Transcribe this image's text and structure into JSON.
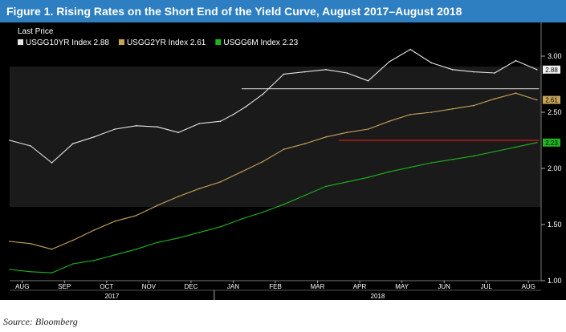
{
  "title": "Figure 1. Rising Rates on the Short End of the Yield Curve, August 2017–August 2018",
  "source": "Source: Bloomberg",
  "colors": {
    "title_bg": "#2d7fc1",
    "panel_bg": "#000000",
    "ten_year": "#e6e6e6",
    "two_year": "#c8a45a",
    "six_month": "#1fb51f",
    "ref_ten": "#bbbbbb",
    "ref_two": "#d01a1a"
  },
  "chart_data": {
    "type": "line",
    "legend_title": "Last Price",
    "legend_position": "top-left",
    "x_ticks": [
      "AUG",
      "SEP",
      "OCT",
      "NOV",
      "DEC",
      "JAN",
      "FEB",
      "MAR",
      "APR",
      "MAY",
      "JUN",
      "JUL",
      "AUG"
    ],
    "year_labels": [
      "2017",
      "2018"
    ],
    "y_ticks": [
      "1.00",
      "1.50",
      "2.00",
      "2.50",
      "3.00"
    ],
    "ylim": [
      1.0,
      3.3
    ],
    "x_range_months": [
      0,
      12.6
    ],
    "series": [
      {
        "name": "USGG10YR Index 2.88",
        "last_label": "2.88",
        "color_key": "ten_year",
        "x": [
          0,
          0.5,
          1.0,
          1.5,
          2.0,
          2.5,
          3.0,
          3.5,
          4.0,
          4.5,
          5.0,
          5.3,
          5.6,
          6.0,
          6.5,
          7.0,
          7.5,
          8.0,
          8.5,
          9.0,
          9.5,
          10.0,
          10.5,
          11.0,
          11.5,
          12.0,
          12.5
        ],
        "values": [
          2.25,
          2.2,
          2.05,
          2.22,
          2.28,
          2.35,
          2.38,
          2.37,
          2.32,
          2.4,
          2.42,
          2.48,
          2.55,
          2.66,
          2.84,
          2.86,
          2.88,
          2.85,
          2.78,
          2.95,
          3.06,
          2.94,
          2.88,
          2.86,
          2.85,
          2.96,
          2.88
        ]
      },
      {
        "name": "USGG2YR Index 2.61",
        "last_label": "2.61",
        "color_key": "two_year",
        "x": [
          0,
          0.5,
          1.0,
          1.5,
          2.0,
          2.5,
          3.0,
          3.5,
          4.0,
          4.5,
          5.0,
          5.5,
          6.0,
          6.5,
          7.0,
          7.5,
          8.0,
          8.5,
          9.0,
          9.5,
          10.0,
          10.5,
          11.0,
          11.5,
          12.0,
          12.5
        ],
        "values": [
          1.35,
          1.33,
          1.28,
          1.36,
          1.45,
          1.53,
          1.58,
          1.67,
          1.75,
          1.82,
          1.88,
          1.97,
          2.06,
          2.17,
          2.22,
          2.28,
          2.32,
          2.35,
          2.42,
          2.48,
          2.5,
          2.53,
          2.56,
          2.62,
          2.67,
          2.61
        ]
      },
      {
        "name": "USGG6M Index 2.23",
        "last_label": "2.23",
        "color_key": "six_month",
        "x": [
          0,
          0.5,
          1.0,
          1.5,
          2.0,
          2.5,
          3.0,
          3.5,
          4.0,
          4.5,
          5.0,
          5.5,
          6.0,
          6.5,
          7.0,
          7.5,
          8.0,
          8.5,
          9.0,
          9.5,
          10.0,
          10.5,
          11.0,
          11.5,
          12.0,
          12.5
        ],
        "values": [
          1.1,
          1.08,
          1.07,
          1.15,
          1.18,
          1.23,
          1.28,
          1.34,
          1.38,
          1.43,
          1.48,
          1.55,
          1.61,
          1.68,
          1.76,
          1.84,
          1.88,
          1.92,
          1.97,
          2.01,
          2.05,
          2.08,
          2.11,
          2.15,
          2.19,
          2.23
        ]
      }
    ],
    "reference_lines": [
      {
        "value": 2.71,
        "x_start": 5.5,
        "x_end": 12.55,
        "color_key": "ref_ten"
      },
      {
        "value": 2.25,
        "x_start": 7.8,
        "x_end": 12.55,
        "color_key": "ref_two"
      }
    ]
  }
}
